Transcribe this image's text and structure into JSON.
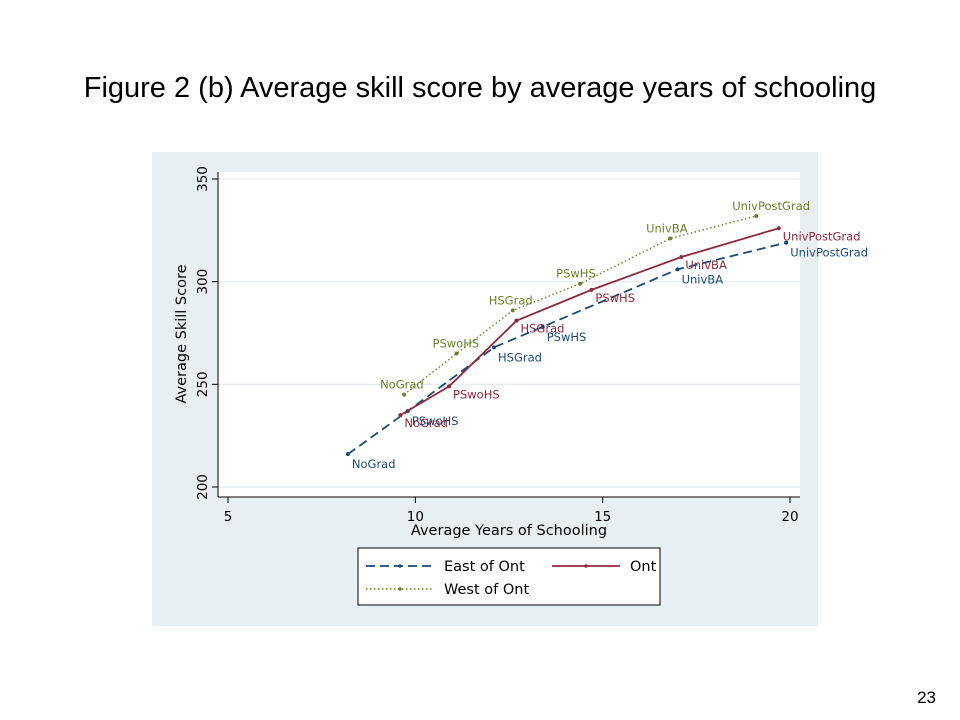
{
  "slide": {
    "title": "Figure 2 (b) Average skill score by average years of schooling",
    "page_number": "23"
  },
  "chart_data": {
    "type": "line",
    "title": "",
    "xlabel": "Average Years of Schooling",
    "ylabel": "Average Skill Score",
    "xlim": [
      5,
      20
    ],
    "ylim": [
      200,
      350
    ],
    "xticks": [
      5,
      10,
      15,
      20
    ],
    "yticks": [
      200,
      250,
      300,
      350
    ],
    "grid": true,
    "legend_position": "bottom",
    "series": [
      {
        "name": "East of Ont",
        "color": "#1a4a72",
        "dash": "dashed",
        "points": [
          {
            "x": 8.2,
            "y": 216,
            "label": "NoGrad"
          },
          {
            "x": 9.8,
            "y": 237,
            "label": "PSwoHS"
          },
          {
            "x": 12.1,
            "y": 268,
            "label": "HSGrad"
          },
          {
            "x": 13.4,
            "y": 278,
            "label": "PSwHS"
          },
          {
            "x": 17.0,
            "y": 306,
            "label": "UnivBA"
          },
          {
            "x": 19.9,
            "y": 319,
            "label": "UnivPostGrad"
          }
        ]
      },
      {
        "name": "Ont",
        "color": "#8c2a3c",
        "dash": "solid",
        "points": [
          {
            "x": 9.6,
            "y": 235,
            "label": "NoGrad"
          },
          {
            "x": 10.9,
            "y": 249,
            "label": "PSwoHS"
          },
          {
            "x": 12.7,
            "y": 281,
            "label": "HSGrad"
          },
          {
            "x": 14.7,
            "y": 296,
            "label": "PSwHS"
          },
          {
            "x": 17.1,
            "y": 312,
            "label": "UnivBA"
          },
          {
            "x": 19.7,
            "y": 326,
            "label": "UnivPostGrad"
          }
        ]
      },
      {
        "name": "West of Ont",
        "color": "#6b7f2a",
        "dash": "dotted",
        "points": [
          {
            "x": 9.7,
            "y": 245,
            "label": "NoGrad"
          },
          {
            "x": 11.1,
            "y": 265,
            "label": "PSwoHS"
          },
          {
            "x": 12.6,
            "y": 286,
            "label": "HSGrad"
          },
          {
            "x": 14.4,
            "y": 299,
            "label": "PSwHS"
          },
          {
            "x": 16.8,
            "y": 321,
            "label": "UnivBA"
          },
          {
            "x": 19.1,
            "y": 332,
            "label": "UnivPostGrad"
          }
        ]
      }
    ]
  }
}
